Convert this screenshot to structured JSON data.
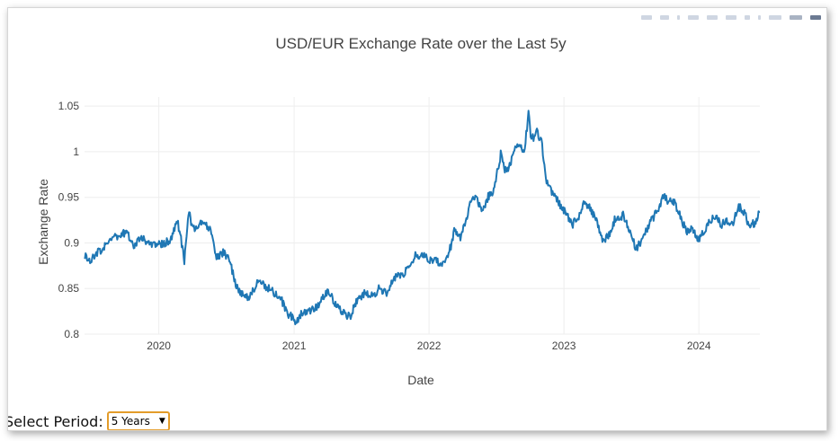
{
  "chart_data": {
    "type": "line",
    "title": "USD/EUR Exchange Rate over the Last 5y",
    "xlabel": "Date",
    "ylabel": "Exchange Rate",
    "x_ticks": [
      "2020",
      "2021",
      "2022",
      "2023",
      "2024"
    ],
    "y_ticks": [
      "0.8",
      "0.85",
      "0.9",
      "0.95",
      "1",
      "1.05"
    ],
    "xlim": [
      "2019-06-14",
      "2024-06-14"
    ],
    "ylim": [
      0.8,
      1.06
    ],
    "grid": true,
    "series": [
      {
        "color": "#1f77b4",
        "points": [
          [
            "2019-06-15",
            0.885
          ],
          [
            "2019-07-01",
            0.88
          ],
          [
            "2019-07-20",
            0.89
          ],
          [
            "2019-08-10",
            0.896
          ],
          [
            "2019-09-01",
            0.907
          ],
          [
            "2019-09-20",
            0.908
          ],
          [
            "2019-10-05",
            0.912
          ],
          [
            "2019-10-25",
            0.898
          ],
          [
            "2019-11-15",
            0.907
          ],
          [
            "2019-12-05",
            0.9
          ],
          [
            "2019-12-25",
            0.899
          ],
          [
            "2020-01-15",
            0.899
          ],
          [
            "2020-02-05",
            0.905
          ],
          [
            "2020-02-20",
            0.924
          ],
          [
            "2020-03-05",
            0.895
          ],
          [
            "2020-03-10",
            0.878
          ],
          [
            "2020-03-18",
            0.915
          ],
          [
            "2020-03-23",
            0.935
          ],
          [
            "2020-04-01",
            0.915
          ],
          [
            "2020-04-15",
            0.92
          ],
          [
            "2020-05-01",
            0.923
          ],
          [
            "2020-05-20",
            0.915
          ],
          [
            "2020-06-05",
            0.885
          ],
          [
            "2020-06-25",
            0.89
          ],
          [
            "2020-07-10",
            0.882
          ],
          [
            "2020-07-25",
            0.856
          ],
          [
            "2020-08-10",
            0.846
          ],
          [
            "2020-09-01",
            0.838
          ],
          [
            "2020-09-25",
            0.859
          ],
          [
            "2020-10-15",
            0.853
          ],
          [
            "2020-11-05",
            0.846
          ],
          [
            "2020-11-25",
            0.84
          ],
          [
            "2020-12-15",
            0.823
          ],
          [
            "2021-01-06",
            0.813
          ],
          [
            "2021-01-20",
            0.823
          ],
          [
            "2021-02-10",
            0.826
          ],
          [
            "2021-03-01",
            0.829
          ],
          [
            "2021-03-20",
            0.84
          ],
          [
            "2021-04-05",
            0.847
          ],
          [
            "2021-04-25",
            0.831
          ],
          [
            "2021-05-15",
            0.823
          ],
          [
            "2021-06-01",
            0.819
          ],
          [
            "2021-06-20",
            0.838
          ],
          [
            "2021-07-10",
            0.845
          ],
          [
            "2021-08-01",
            0.842
          ],
          [
            "2021-08-20",
            0.85
          ],
          [
            "2021-09-10",
            0.845
          ],
          [
            "2021-09-25",
            0.86
          ],
          [
            "2021-10-15",
            0.864
          ],
          [
            "2021-11-05",
            0.871
          ],
          [
            "2021-11-25",
            0.887
          ],
          [
            "2021-12-15",
            0.886
          ],
          [
            "2022-01-05",
            0.88
          ],
          [
            "2022-01-20",
            0.882
          ],
          [
            "2022-02-05",
            0.875
          ],
          [
            "2022-02-15",
            0.88
          ],
          [
            "2022-03-01",
            0.897
          ],
          [
            "2022-03-10",
            0.913
          ],
          [
            "2022-03-25",
            0.905
          ],
          [
            "2022-04-10",
            0.921
          ],
          [
            "2022-04-28",
            0.952
          ],
          [
            "2022-05-10",
            0.951
          ],
          [
            "2022-05-25",
            0.932
          ],
          [
            "2022-06-10",
            0.951
          ],
          [
            "2022-06-25",
            0.958
          ],
          [
            "2022-07-14",
            0.997
          ],
          [
            "2022-07-25",
            0.979
          ],
          [
            "2022-08-05",
            0.981
          ],
          [
            "2022-08-20",
            1.004
          ],
          [
            "2022-09-05",
            1.007
          ],
          [
            "2022-09-15",
            0.997
          ],
          [
            "2022-09-27",
            1.041
          ],
          [
            "2022-10-05",
            1.013
          ],
          [
            "2022-10-20",
            1.021
          ],
          [
            "2022-11-01",
            1.013
          ],
          [
            "2022-11-15",
            0.966
          ],
          [
            "2022-12-01",
            0.955
          ],
          [
            "2022-12-20",
            0.942
          ],
          [
            "2023-01-10",
            0.93
          ],
          [
            "2023-01-25",
            0.92
          ],
          [
            "2023-02-10",
            0.93
          ],
          [
            "2023-02-25",
            0.945
          ],
          [
            "2023-03-15",
            0.937
          ],
          [
            "2023-03-28",
            0.925
          ],
          [
            "2023-04-15",
            0.905
          ],
          [
            "2023-05-01",
            0.906
          ],
          [
            "2023-05-20",
            0.927
          ],
          [
            "2023-06-10",
            0.93
          ],
          [
            "2023-06-25",
            0.917
          ],
          [
            "2023-07-15",
            0.893
          ],
          [
            "2023-08-01",
            0.905
          ],
          [
            "2023-08-20",
            0.92
          ],
          [
            "2023-09-10",
            0.935
          ],
          [
            "2023-09-27",
            0.951
          ],
          [
            "2023-10-10",
            0.946
          ],
          [
            "2023-10-25",
            0.945
          ],
          [
            "2023-11-10",
            0.932
          ],
          [
            "2023-11-28",
            0.912
          ],
          [
            "2023-12-15",
            0.915
          ],
          [
            "2023-12-28",
            0.902
          ],
          [
            "2024-01-10",
            0.91
          ],
          [
            "2024-02-01",
            0.925
          ],
          [
            "2024-02-15",
            0.93
          ],
          [
            "2024-03-01",
            0.92
          ],
          [
            "2024-03-20",
            0.924
          ],
          [
            "2024-04-05",
            0.923
          ],
          [
            "2024-04-16",
            0.94
          ],
          [
            "2024-05-01",
            0.935
          ],
          [
            "2024-05-15",
            0.92
          ],
          [
            "2024-06-01",
            0.921
          ],
          [
            "2024-06-14",
            0.934
          ]
        ]
      }
    ]
  },
  "controls": {
    "period_label": "Select Period:",
    "period_value": "5 Years"
  }
}
